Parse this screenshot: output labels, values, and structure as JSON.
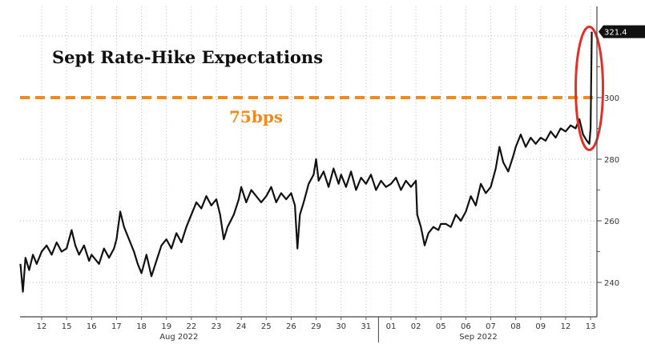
{
  "chart_data": {
    "type": "line",
    "title": "Sept Rate-Hike Expectations",
    "xlabel": "",
    "ylabel": "",
    "ylim": [
      232,
      327
    ],
    "yticks": [
      240,
      260,
      280,
      300
    ],
    "x_tick_labels": [
      "12",
      "15",
      "16",
      "17",
      "18",
      "19",
      "22",
      "23",
      "24",
      "25",
      "26",
      "29",
      "30",
      "31",
      "01",
      "02",
      "05",
      "06",
      "07",
      "08",
      "09",
      "12",
      "13"
    ],
    "month_labels": [
      {
        "label": "Aug 2022",
        "center_index": 5.5
      },
      {
        "label": "Sep 2022",
        "center_index": 17.5
      }
    ],
    "month_divider_index": 13.5,
    "grid": true,
    "reference_line": {
      "value": 300,
      "label": "75bps",
      "color": "#f08a1c"
    },
    "last_value_label": "321.4",
    "highlight_range": {
      "x_index": 21.95,
      "ymin": 283,
      "ymax": 323,
      "color": "#e0302a"
    },
    "series": [
      {
        "name": "Sept Rate-Hike Expectations",
        "color": "#111111",
        "points": [
          [
            -0.85,
            246
          ],
          [
            -0.75,
            237
          ],
          [
            -0.65,
            248
          ],
          [
            -0.5,
            244
          ],
          [
            -0.35,
            249
          ],
          [
            -0.2,
            246
          ],
          [
            0,
            250
          ],
          [
            0.2,
            252
          ],
          [
            0.4,
            249
          ],
          [
            0.6,
            253
          ],
          [
            0.8,
            250
          ],
          [
            1,
            251
          ],
          [
            1.2,
            257
          ],
          [
            1.35,
            252
          ],
          [
            1.5,
            249
          ],
          [
            1.7,
            252
          ],
          [
            1.9,
            247
          ],
          [
            2,
            249
          ],
          [
            2.3,
            246
          ],
          [
            2.5,
            251
          ],
          [
            2.7,
            248
          ],
          [
            2.9,
            251
          ],
          [
            3,
            254
          ],
          [
            3.15,
            263
          ],
          [
            3.3,
            258
          ],
          [
            3.5,
            254
          ],
          [
            3.7,
            250
          ],
          [
            3.85,
            246
          ],
          [
            4,
            243
          ],
          [
            4.2,
            249
          ],
          [
            4.4,
            242
          ],
          [
            4.6,
            247
          ],
          [
            4.8,
            252
          ],
          [
            5,
            254
          ],
          [
            5.2,
            251
          ],
          [
            5.4,
            256
          ],
          [
            5.6,
            253
          ],
          [
            5.8,
            258
          ],
          [
            6,
            262
          ],
          [
            6.2,
            266
          ],
          [
            6.4,
            264
          ],
          [
            6.6,
            268
          ],
          [
            6.8,
            265
          ],
          [
            7,
            267
          ],
          [
            7.15,
            262
          ],
          [
            7.3,
            254
          ],
          [
            7.45,
            258
          ],
          [
            7.7,
            262
          ],
          [
            7.9,
            267
          ],
          [
            8,
            271
          ],
          [
            8.2,
            266
          ],
          [
            8.4,
            270
          ],
          [
            8.6,
            268
          ],
          [
            8.8,
            266
          ],
          [
            9,
            268
          ],
          [
            9.2,
            271
          ],
          [
            9.4,
            266
          ],
          [
            9.6,
            269
          ],
          [
            9.8,
            267
          ],
          [
            10,
            269
          ],
          [
            10.15,
            265
          ],
          [
            10.25,
            251
          ],
          [
            10.35,
            262
          ],
          [
            10.5,
            266
          ],
          [
            10.7,
            272
          ],
          [
            10.9,
            275
          ],
          [
            11,
            280
          ],
          [
            11.1,
            273
          ],
          [
            11.3,
            276
          ],
          [
            11.5,
            271
          ],
          [
            11.7,
            277
          ],
          [
            11.9,
            272
          ],
          [
            12,
            275
          ],
          [
            12.2,
            271
          ],
          [
            12.4,
            276
          ],
          [
            12.6,
            270
          ],
          [
            12.8,
            274
          ],
          [
            13,
            272
          ],
          [
            13.2,
            275
          ],
          [
            13.4,
            270
          ],
          [
            13.6,
            273
          ],
          [
            13.8,
            271
          ],
          [
            14,
            272
          ],
          [
            14.2,
            274
          ],
          [
            14.4,
            270
          ],
          [
            14.6,
            273
          ],
          [
            14.8,
            271
          ],
          [
            15,
            273
          ],
          [
            15.05,
            262
          ],
          [
            15.2,
            258
          ],
          [
            15.35,
            252
          ],
          [
            15.5,
            256
          ],
          [
            15.7,
            258
          ],
          [
            15.9,
            257
          ],
          [
            16,
            259
          ],
          [
            16.2,
            259
          ],
          [
            16.4,
            258
          ],
          [
            16.6,
            262
          ],
          [
            16.8,
            260
          ],
          [
            17,
            263
          ],
          [
            17.2,
            268
          ],
          [
            17.4,
            265
          ],
          [
            17.6,
            272
          ],
          [
            17.8,
            269
          ],
          [
            18,
            271
          ],
          [
            18.2,
            277
          ],
          [
            18.35,
            284
          ],
          [
            18.5,
            279
          ],
          [
            18.7,
            276
          ],
          [
            18.9,
            281
          ],
          [
            19,
            284
          ],
          [
            19.2,
            288
          ],
          [
            19.4,
            284
          ],
          [
            19.6,
            287
          ],
          [
            19.8,
            285
          ],
          [
            20,
            287
          ],
          [
            20.2,
            286
          ],
          [
            20.4,
            289
          ],
          [
            20.6,
            287
          ],
          [
            20.8,
            290
          ],
          [
            21,
            289
          ],
          [
            21.2,
            291
          ],
          [
            21.4,
            290
          ],
          [
            21.55,
            293
          ],
          [
            21.7,
            288
          ],
          [
            21.85,
            286
          ],
          [
            21.95,
            285
          ],
          [
            22,
            290
          ],
          [
            22.05,
            321.4
          ]
        ]
      }
    ]
  }
}
